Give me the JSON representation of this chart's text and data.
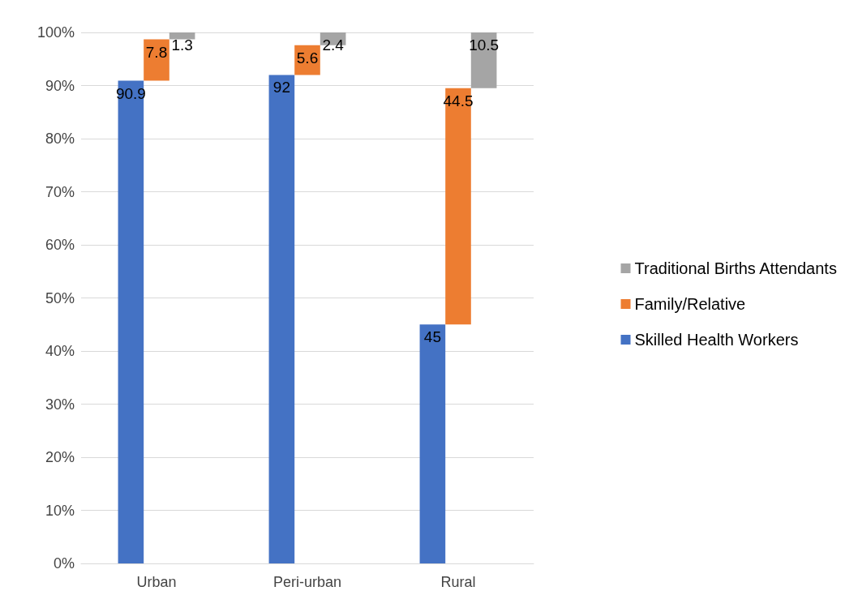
{
  "chart_data": {
    "type": "bar",
    "categories": [
      "Urban",
      "Peri-urban",
      "Rural"
    ],
    "series": [
      {
        "name": "Skilled Health Workers",
        "color": "#4472c4",
        "values": [
          90.9,
          92,
          45
        ]
      },
      {
        "name": "Family/Relative",
        "color": "#ed7d31",
        "values": [
          7.8,
          5.6,
          44.5
        ],
        "base": [
          90.9,
          92,
          45
        ]
      },
      {
        "name": "Traditional Births Attendants",
        "color": "#a5a5a5",
        "values": [
          1.3,
          2.4,
          10.5
        ],
        "base": [
          98.7,
          97.6,
          89.5
        ]
      }
    ],
    "ylim": [
      0,
      100
    ],
    "yticks": [
      {
        "value": 0,
        "label": "0%"
      },
      {
        "value": 10,
        "label": "10%"
      },
      {
        "value": 20,
        "label": "20%"
      },
      {
        "value": 30,
        "label": "30%"
      },
      {
        "value": 40,
        "label": "40%"
      },
      {
        "value": 50,
        "label": "50%"
      },
      {
        "value": 60,
        "label": "60%"
      },
      {
        "value": 70,
        "label": "70%"
      },
      {
        "value": 80,
        "label": "80%"
      },
      {
        "value": 90,
        "label": "90%"
      },
      {
        "value": 100,
        "label": "100%"
      }
    ],
    "grid": true,
    "legend": "right",
    "data_labels": true
  }
}
